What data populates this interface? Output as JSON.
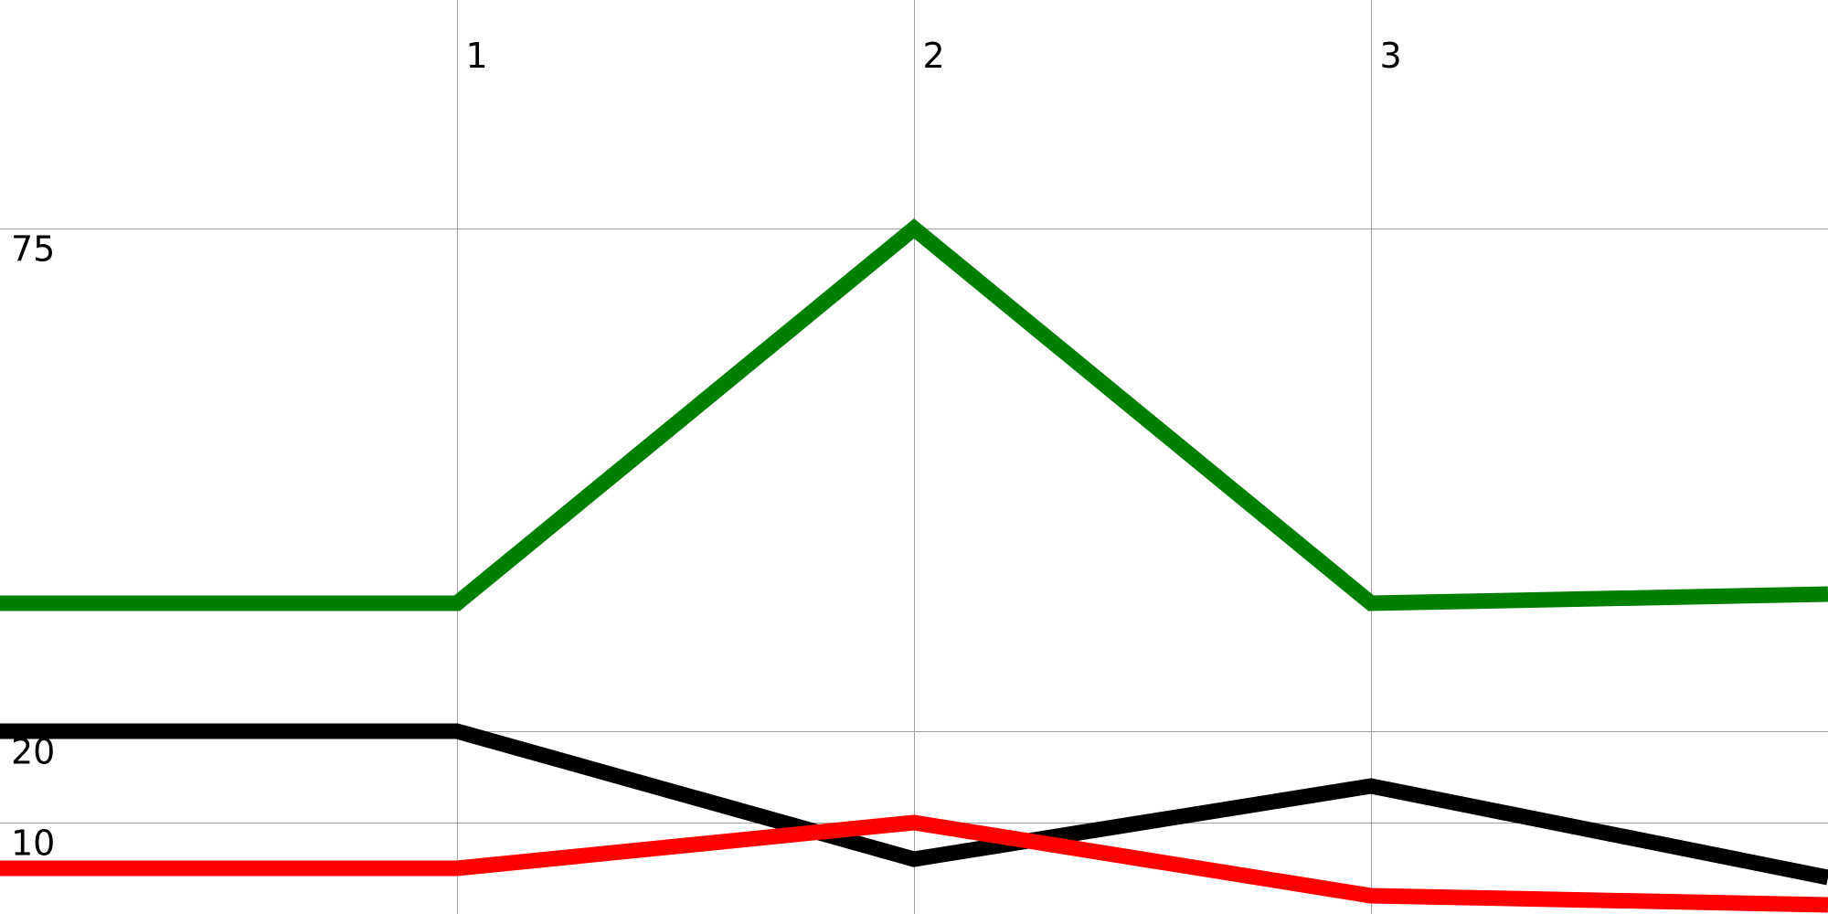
{
  "chart_data": {
    "type": "line",
    "x": [
      0,
      1,
      2,
      3,
      4
    ],
    "xlim": [
      0,
      4
    ],
    "ylim": [
      0,
      100
    ],
    "x_ticks": [
      {
        "value": 1,
        "label": "1"
      },
      {
        "value": 2,
        "label": "2"
      },
      {
        "value": 3,
        "label": "3"
      }
    ],
    "y_ticks": [
      {
        "value": 10,
        "label": "10"
      },
      {
        "value": 20,
        "label": "20"
      },
      {
        "value": 75,
        "label": "75"
      }
    ],
    "grid": true,
    "title": "",
    "xlabel": "",
    "ylabel": "",
    "series": [
      {
        "color": "#008000",
        "values": [
          34,
          34,
          75,
          34,
          35
        ]
      },
      {
        "color": "#000000",
        "values": [
          20,
          20,
          6,
          14,
          4
        ]
      },
      {
        "color": "#ff0000",
        "values": [
          5,
          5,
          10,
          2,
          1
        ]
      }
    ]
  }
}
